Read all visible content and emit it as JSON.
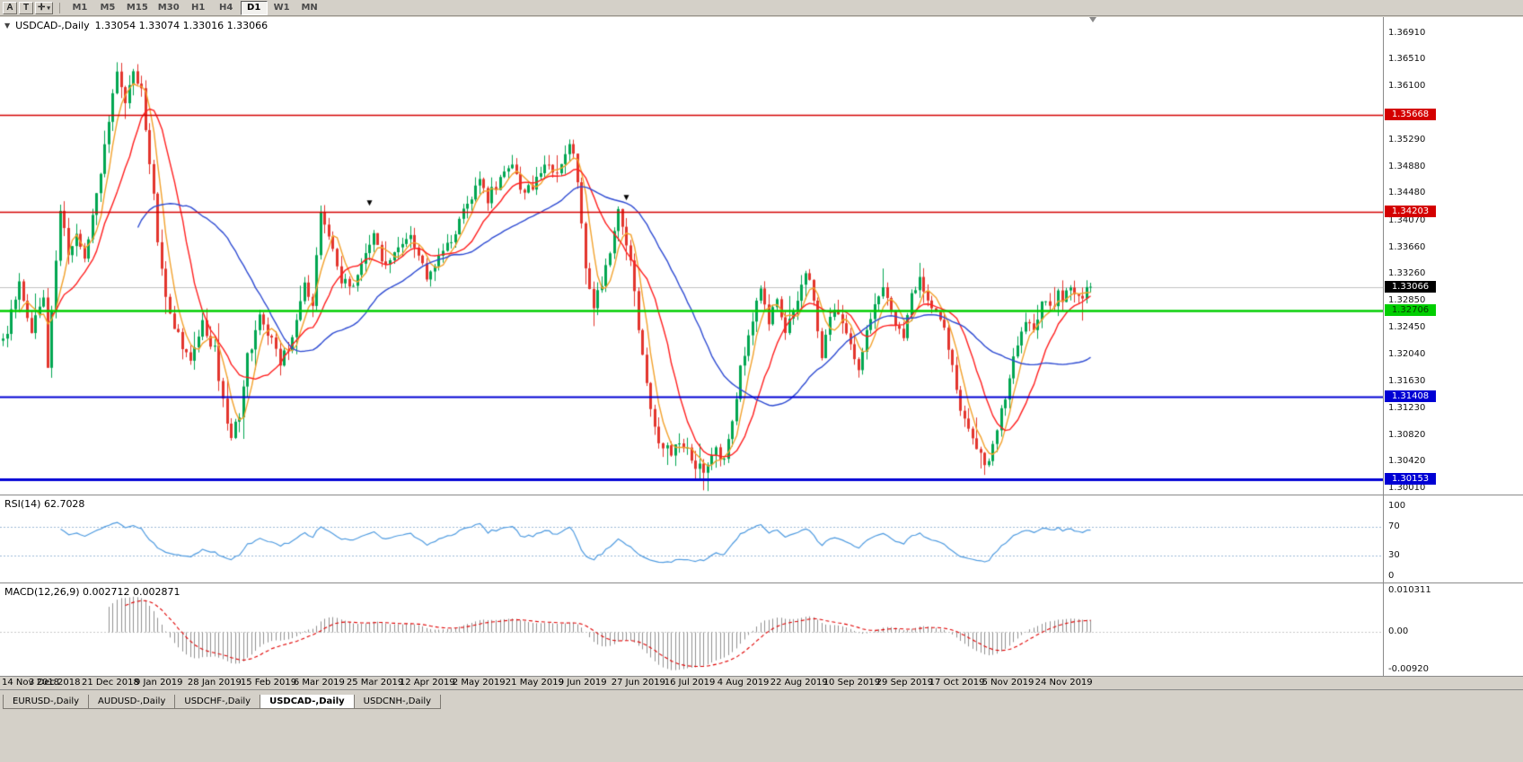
{
  "window": {
    "background": "#d4d0c8"
  },
  "toolbar": {
    "buttons": [
      {
        "label": "A"
      },
      {
        "label": "T"
      }
    ],
    "cursor_tool_caret": "▾",
    "timeframes": [
      {
        "label": "M1",
        "active": false
      },
      {
        "label": "M5",
        "active": false
      },
      {
        "label": "M15",
        "active": false
      },
      {
        "label": "M30",
        "active": false
      },
      {
        "label": "H1",
        "active": false
      },
      {
        "label": "H4",
        "active": false
      },
      {
        "label": "D1",
        "active": true
      },
      {
        "label": "W1",
        "active": false
      },
      {
        "label": "MN",
        "active": false
      }
    ]
  },
  "chart": {
    "collapse_icon": "▼",
    "symbol": "USDCAD-,Daily",
    "ohlc_text": "1.33054 1.33074 1.33016 1.33066",
    "price_axis_ticks": [
      "1.36910",
      "1.36510",
      "1.36100",
      "1.35690",
      "1.35290",
      "1.34880",
      "1.34480",
      "1.34070",
      "1.33660",
      "1.33260",
      "1.32850",
      "1.32450",
      "1.32040",
      "1.31630",
      "1.31230",
      "1.30820",
      "1.30420",
      "1.30010"
    ],
    "chart_data": {
      "type": "candlestick",
      "title": "USDCAD Daily",
      "bars": 268,
      "ylim": [
        1.2992,
        1.3715
      ],
      "seed": 12345,
      "noise": 0.0017,
      "wick_extra": 0.0016,
      "up_color": "#00a651",
      "down_color": "#e3352d",
      "marker_color": "#000000",
      "current": {
        "open": 1.33054,
        "high": 1.33074,
        "low": 1.33016,
        "close": 1.33066
      },
      "price_anchors": [
        [
          0,
          1.322
        ],
        [
          4,
          1.331
        ],
        [
          7,
          1.3245
        ],
        [
          10,
          1.329
        ],
        [
          11,
          1.3185
        ],
        [
          14,
          1.343
        ],
        [
          16,
          1.335
        ],
        [
          18,
          1.3385
        ],
        [
          20,
          1.335
        ],
        [
          23,
          1.344
        ],
        [
          26,
          1.356
        ],
        [
          28,
          1.363
        ],
        [
          30,
          1.359
        ],
        [
          32,
          1.363
        ],
        [
          34,
          1.36
        ],
        [
          36,
          1.35
        ],
        [
          38,
          1.338
        ],
        [
          40,
          1.329
        ],
        [
          43,
          1.323
        ],
        [
          46,
          1.319
        ],
        [
          49,
          1.325
        ],
        [
          52,
          1.321
        ],
        [
          54,
          1.313
        ],
        [
          56,
          1.308
        ],
        [
          58,
          1.311
        ],
        [
          60,
          1.32
        ],
        [
          63,
          1.326
        ],
        [
          65,
          1.324
        ],
        [
          68,
          1.319
        ],
        [
          71,
          1.323
        ],
        [
          74,
          1.331
        ],
        [
          76,
          1.328
        ],
        [
          78,
          1.342
        ],
        [
          80,
          1.339
        ],
        [
          83,
          1.332
        ],
        [
          86,
          1.33
        ],
        [
          89,
          1.336
        ],
        [
          91,
          1.338
        ],
        [
          94,
          1.334
        ],
        [
          97,
          1.336
        ],
        [
          100,
          1.339
        ],
        [
          102,
          1.335
        ],
        [
          104,
          1.332
        ],
        [
          107,
          1.335
        ],
        [
          110,
          1.338
        ],
        [
          113,
          1.342
        ],
        [
          116,
          1.346
        ],
        [
          117,
          1.347
        ],
        [
          119,
          1.344
        ],
        [
          122,
          1.347
        ],
        [
          125,
          1.349
        ],
        [
          127,
          1.345
        ],
        [
          130,
          1.346
        ],
        [
          133,
          1.349
        ],
        [
          136,
          1.347
        ],
        [
          139,
          1.353
        ],
        [
          141,
          1.347
        ],
        [
          143,
          1.333
        ],
        [
          145,
          1.328
        ],
        [
          147,
          1.331
        ],
        [
          149,
          1.336
        ],
        [
          151,
          1.342
        ],
        [
          154,
          1.334
        ],
        [
          157,
          1.32
        ],
        [
          159,
          1.312
        ],
        [
          161,
          1.3075
        ],
        [
          164,
          1.3055
        ],
        [
          167,
          1.307
        ],
        [
          169,
          1.3045
        ],
        [
          172,
          1.3025
        ],
        [
          175,
          1.306
        ],
        [
          177,
          1.304
        ],
        [
          179,
          1.31
        ],
        [
          181,
          1.318
        ],
        [
          182,
          1.32
        ],
        [
          184,
          1.326
        ],
        [
          186,
          1.33
        ],
        [
          188,
          1.325
        ],
        [
          190,
          1.329
        ],
        [
          192,
          1.324
        ],
        [
          195,
          1.329
        ],
        [
          197,
          1.333
        ],
        [
          199,
          1.329
        ],
        [
          201,
          1.32
        ],
        [
          204,
          1.328
        ],
        [
          207,
          1.323
        ],
        [
          210,
          1.318
        ],
        [
          213,
          1.326
        ],
        [
          216,
          1.33
        ],
        [
          219,
          1.325
        ],
        [
          221,
          1.323
        ],
        [
          223,
          1.329
        ],
        [
          225,
          1.332
        ],
        [
          228,
          1.328
        ],
        [
          231,
          1.324
        ],
        [
          234,
          1.315
        ],
        [
          236,
          1.31
        ],
        [
          238,
          1.307
        ],
        [
          240,
          1.305
        ],
        [
          242,
          1.304
        ],
        [
          244,
          1.309
        ],
        [
          246,
          1.314
        ],
        [
          247,
          1.317
        ],
        [
          249,
          1.322
        ],
        [
          251,
          1.326
        ],
        [
          253,
          1.324
        ],
        [
          255,
          1.329
        ],
        [
          257,
          1.327
        ],
        [
          259,
          1.33
        ],
        [
          260,
          1.328
        ],
        [
          262,
          1.331
        ],
        [
          264,
          1.329
        ],
        [
          266,
          1.33
        ],
        [
          267,
          1.33066
        ]
      ],
      "moving_averages": [
        {
          "period": 5,
          "color": "#f2a12c"
        },
        {
          "period": 13,
          "color": "#ff1f1f"
        },
        {
          "period": 34,
          "color": "#2e4bd2"
        }
      ],
      "h_levels": [
        {
          "price": 1.35668,
          "label": "1.35668",
          "color": "#d40000",
          "badge_bg": "#d40000",
          "badge_fg": "#ffffff",
          "width": 1.5
        },
        {
          "price": 1.34203,
          "label": "1.34203",
          "color": "#d40000",
          "badge_bg": "#d40000",
          "badge_fg": "#ffffff",
          "width": 1.5
        },
        {
          "price": 1.32706,
          "label": "1.32706",
          "color": "#00ce00",
          "badge_bg": "#00ce00",
          "badge_fg": "#063800",
          "width": 2.5
        },
        {
          "price": 1.31408,
          "label": "1.31408",
          "color": "#0000d4",
          "badge_bg": "#0000d4",
          "badge_fg": "#ffffff",
          "width": 2
        },
        {
          "price": 1.30153,
          "label": "1.30153",
          "color": "#0000d4",
          "badge_bg": "#0000d4",
          "badge_fg": "#ffffff",
          "width": 3
        }
      ],
      "bid_line": {
        "price": 1.33066,
        "label": "1.33066",
        "color": "#c0c0c0",
        "badge_bg": "#000000",
        "badge_fg": "#ffffff"
      },
      "markers": [
        {
          "bar": 90,
          "price": 1.3432
        },
        {
          "bar": 153,
          "price": 1.344
        }
      ],
      "x_label_bars": [
        0,
        13,
        26,
        39,
        52,
        65,
        78,
        91,
        104,
        117,
        130,
        143,
        156,
        169,
        182,
        195,
        208,
        221,
        234,
        247,
        260
      ],
      "x_labels": [
        "14 Nov 2018",
        "3 Dec 2018",
        "21 Dec 2018",
        "9 Jan 2019",
        "28 Jan 2019",
        "15 Feb 2019",
        "6 Mar 2019",
        "25 Mar 2019",
        "12 Apr 2019",
        "2 May 2019",
        "21 May 2019",
        "9 Jun 2019",
        "27 Jun 2019",
        "16 Jul 2019",
        "4 Aug 2019",
        "22 Aug 2019",
        "10 Sep 2019",
        "29 Sep 2019",
        "17 Oct 2019",
        "5 Nov 2019",
        "24 Nov 2019"
      ],
      "grid": "off",
      "indicators": [
        {
          "name": "RSI",
          "period": 14,
          "current_value": 62.7028
        },
        {
          "name": "MACD",
          "fast": 12,
          "slow": 26,
          "signal": 9,
          "current_values": [
            0.002712,
            0.002871
          ]
        }
      ]
    }
  },
  "rsi_panel": {
    "header": "RSI(14) 62.7028",
    "axis": [
      "100",
      "70",
      "30",
      "0"
    ],
    "levels": [
      70,
      30
    ],
    "level_color": "#9db9d6",
    "line_color": "#4f9be0"
  },
  "macd_panel": {
    "header": "MACD(12,26,9) 0.002712 0.002871",
    "axis_top": "0.010311",
    "axis_zero": "0.00",
    "axis_bottom": "-0.00920",
    "range": [
      0.0103,
      -0.0092
    ],
    "histogram_color": "#909090",
    "signal_color": "#e00000",
    "zero_line_color": "#c8c8c8"
  },
  "date_axis": {
    "labels": [
      "14 Nov 2018",
      "3 Dec 2018",
      "21 Dec 2018",
      "9 Jan 2019",
      "28 Jan 2019",
      "15 Feb 2019",
      "6 Mar 2019",
      "25 Mar 2019",
      "12 Apr 2019",
      "2 May 2019",
      "21 May 2019",
      "9 Jun 2019",
      "27 Jun 2019",
      "16 Jul 2019",
      "4 Aug 2019",
      "22 Aug 2019",
      "10 Sep 2019",
      "29 Sep 2019",
      "17 Oct 2019",
      "5 Nov 2019",
      "24 Nov 2019"
    ]
  },
  "tabs": [
    {
      "label": "EURUSD-,Daily",
      "active": false
    },
    {
      "label": "AUDUSD-,Daily",
      "active": false
    },
    {
      "label": "USDCHF-,Daily",
      "active": false
    },
    {
      "label": "USDCAD-,Daily",
      "active": true
    },
    {
      "label": "USDCNH-,Daily",
      "active": false
    }
  ]
}
